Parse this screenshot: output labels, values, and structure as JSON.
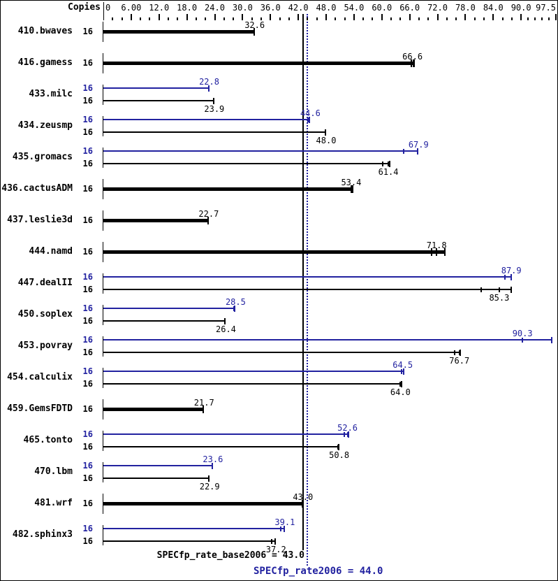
{
  "header": {
    "copies_label": "Copies"
  },
  "axis": {
    "min": 0,
    "max": 97.5,
    "major_ticks": [
      {
        "v": 0,
        "label": "0"
      },
      {
        "v": 6,
        "label": "6.00"
      },
      {
        "v": 12,
        "label": "12.0"
      },
      {
        "v": 18,
        "label": "18.0"
      },
      {
        "v": 24,
        "label": "24.0"
      },
      {
        "v": 30,
        "label": "30.0"
      },
      {
        "v": 36,
        "label": "36.0"
      },
      {
        "v": 42,
        "label": "42.0"
      },
      {
        "v": 48,
        "label": "48.0"
      },
      {
        "v": 54,
        "label": "54.0"
      },
      {
        "v": 60,
        "label": "60.0"
      },
      {
        "v": 66,
        "label": "66.0"
      },
      {
        "v": 72,
        "label": "72.0"
      },
      {
        "v": 78,
        "label": "78.0"
      },
      {
        "v": 84,
        "label": "84.0"
      },
      {
        "v": 90,
        "label": "90.0"
      },
      {
        "v": 97.5,
        "label": "97.5"
      }
    ],
    "minor_tick_values": [
      2,
      4,
      8,
      10,
      14,
      16,
      20,
      22,
      26,
      28,
      32,
      34,
      38,
      40,
      44,
      46,
      50,
      52,
      56,
      58,
      62,
      64,
      68,
      70,
      74,
      76,
      80,
      82,
      86,
      88,
      91.5,
      93,
      94.5,
      96
    ]
  },
  "chart_data": {
    "type": "bar",
    "orientation": "horizontal",
    "xlabel": "Copies",
    "xlim": [
      0,
      97.5
    ],
    "grid": false,
    "series_legend": {
      "peak": "SPECfp_rate2006",
      "base": "SPECfp_rate_base2006"
    },
    "benchmarks": [
      {
        "name": "410.bwaves",
        "bars": [
          {
            "kind": "base",
            "copies": "16",
            "label": "32.6",
            "value": 32.6,
            "bar_end": 32.6,
            "run_marks": []
          }
        ]
      },
      {
        "name": "416.gamess",
        "bars": [
          {
            "kind": "base",
            "copies": "16",
            "label": "66.6",
            "value": 66.6,
            "bar_end": 67.1,
            "run_marks": [
              66.4,
              66.8
            ]
          }
        ]
      },
      {
        "name": "433.milc",
        "bars": [
          {
            "kind": "peak",
            "copies": "16",
            "label": "22.8",
            "value": 22.8,
            "bar_end": 22.8,
            "run_marks": []
          },
          {
            "kind": "base",
            "copies": "16",
            "label": "23.9",
            "value": 23.9,
            "bar_end": 23.9,
            "run_marks": []
          }
        ]
      },
      {
        "name": "434.zeusmp",
        "bars": [
          {
            "kind": "peak",
            "copies": "16",
            "label": "44.6",
            "value": 44.6,
            "bar_end": 44.6,
            "run_marks": [
              44.1
            ]
          },
          {
            "kind": "base",
            "copies": "16",
            "label": "48.0",
            "value": 48.0,
            "bar_end": 48.0,
            "run_marks": []
          }
        ]
      },
      {
        "name": "435.gromacs",
        "bars": [
          {
            "kind": "peak",
            "copies": "16",
            "label": "67.9",
            "value": 67.9,
            "bar_end": 67.9,
            "run_marks": [
              64.7
            ]
          },
          {
            "kind": "base",
            "copies": "16",
            "label": "61.4",
            "value": 61.4,
            "bar_end": 61.8,
            "run_marks": [
              60.2,
              61.4
            ]
          }
        ]
      },
      {
        "name": "436.cactusADM",
        "bars": [
          {
            "kind": "base",
            "copies": "16",
            "label": "53.4",
            "value": 53.4,
            "bar_end": 53.9,
            "run_marks": [
              53.4
            ]
          }
        ]
      },
      {
        "name": "437.leslie3d",
        "bars": [
          {
            "kind": "base",
            "copies": "16",
            "label": "22.7",
            "value": 22.7,
            "bar_end": 22.7,
            "run_marks": []
          }
        ]
      },
      {
        "name": "444.namd",
        "bars": [
          {
            "kind": "base",
            "copies": "16",
            "label": "71.8",
            "value": 71.8,
            "bar_end": 73.7,
            "run_marks": [
              70.7,
              71.8
            ]
          }
        ]
      },
      {
        "name": "447.dealII",
        "bars": [
          {
            "kind": "peak",
            "copies": "16",
            "label": "87.9",
            "value": 87.9,
            "bar_end": 88.0,
            "run_marks": [
              86.5
            ]
          },
          {
            "kind": "base",
            "copies": "16",
            "label": "85.3",
            "value": 85.3,
            "bar_end": 88.0,
            "run_marks": [
              81.4,
              85.3
            ]
          }
        ]
      },
      {
        "name": "450.soplex",
        "bars": [
          {
            "kind": "peak",
            "copies": "16",
            "label": "28.5",
            "value": 28.5,
            "bar_end": 28.5,
            "run_marks": [
              28.1
            ]
          },
          {
            "kind": "base",
            "copies": "16",
            "label": "26.4",
            "value": 26.4,
            "bar_end": 26.4,
            "run_marks": []
          }
        ]
      },
      {
        "name": "453.povray",
        "bars": [
          {
            "kind": "peak",
            "copies": "16",
            "label": "90.3",
            "value": 90.3,
            "bar_end": 96.7,
            "run_marks": [
              90.3
            ]
          },
          {
            "kind": "base",
            "copies": "16",
            "label": "76.7",
            "value": 76.7,
            "bar_end": 77.0,
            "run_marks": [
              75.7,
              76.7
            ]
          }
        ]
      },
      {
        "name": "454.calculix",
        "bars": [
          {
            "kind": "peak",
            "copies": "16",
            "label": "64.5",
            "value": 64.5,
            "bar_end": 64.9,
            "run_marks": [
              64.2
            ]
          },
          {
            "kind": "base",
            "copies": "16",
            "label": "64.0",
            "value": 64.0,
            "bar_end": 64.4,
            "run_marks": [
              64.0
            ]
          }
        ]
      },
      {
        "name": "459.GemsFDTD",
        "bars": [
          {
            "kind": "base",
            "copies": "16",
            "label": "21.7",
            "value": 21.7,
            "bar_end": 21.7,
            "run_marks": []
          }
        ]
      },
      {
        "name": "465.tonto",
        "bars": [
          {
            "kind": "peak",
            "copies": "16",
            "label": "52.6",
            "value": 52.6,
            "bar_end": 52.9,
            "run_marks": [
              51.9,
              52.6
            ]
          },
          {
            "kind": "base",
            "copies": "16",
            "label": "50.8",
            "value": 50.8,
            "bar_end": 50.9,
            "run_marks": [
              50.5
            ]
          }
        ]
      },
      {
        "name": "470.lbm",
        "bars": [
          {
            "kind": "peak",
            "copies": "16",
            "label": "23.6",
            "value": 23.6,
            "bar_end": 23.6,
            "run_marks": []
          },
          {
            "kind": "base",
            "copies": "16",
            "label": "22.9",
            "value": 22.9,
            "bar_end": 22.9,
            "run_marks": []
          }
        ]
      },
      {
        "name": "481.wrf",
        "bars": [
          {
            "kind": "base",
            "copies": "16",
            "label": "43.0",
            "value": 43.0,
            "bar_end": 43.0,
            "run_marks": []
          }
        ]
      },
      {
        "name": "482.sphinx3",
        "bars": [
          {
            "kind": "peak",
            "copies": "16",
            "label": "39.1",
            "value": 39.1,
            "bar_end": 39.1,
            "run_marks": [
              38.2
            ]
          },
          {
            "kind": "base",
            "copies": "16",
            "label": "37.2",
            "value": 37.2,
            "bar_end": 37.2,
            "run_marks": [
              36.2
            ]
          }
        ]
      }
    ]
  },
  "summary": {
    "base": {
      "label": "SPECfp_rate_base2006 = 43.0",
      "value": 43.0
    },
    "peak": {
      "label": "SPECfp_rate2006 = 44.0",
      "value": 44.0
    }
  },
  "colors": {
    "base": "#000000",
    "peak": "#2222a0",
    "background": "#ffffff"
  }
}
